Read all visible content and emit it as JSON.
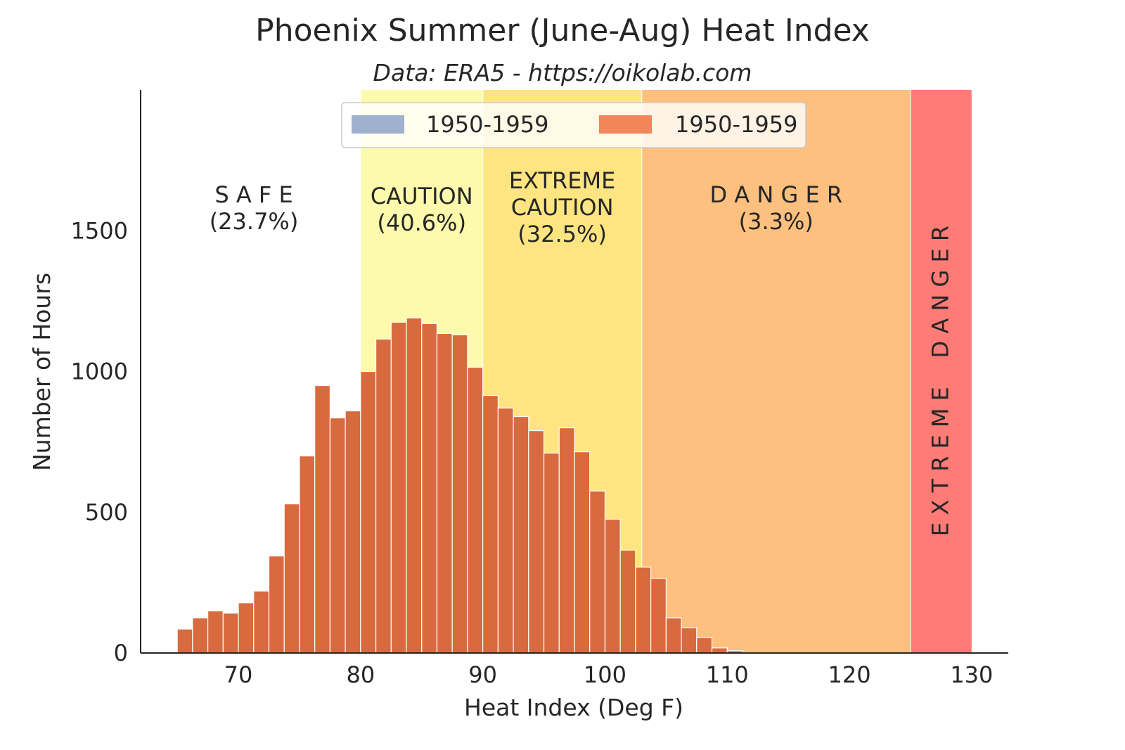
{
  "chart_data": {
    "type": "bar",
    "title": "Phoenix Summer (June-Aug) Heat Index",
    "subtitle": "Data: ERA5 - https://oikolab.com",
    "xlabel": "Heat Index (Deg F)",
    "ylabel": "Number of Hours",
    "xlim": [
      62,
      133
    ],
    "ylim": [
      0,
      2000
    ],
    "x_ticks": [
      70,
      80,
      90,
      100,
      110,
      120,
      130
    ],
    "y_ticks": [
      0,
      500,
      1000,
      1500
    ],
    "bin_width": 1.25,
    "grid": false,
    "legend_position": "top-center",
    "legend": [
      {
        "label": "1950-1959",
        "color": "#9fb1cf"
      },
      {
        "label": "1950-1959",
        "color": "#f4845a"
      }
    ],
    "zones": [
      {
        "name": "SAFE",
        "label_lines": [
          "S A F E",
          "(23.7%)"
        ],
        "from": 62,
        "to": 80,
        "color": "#ffffff"
      },
      {
        "name": "CAUTION",
        "label_lines": [
          "CAUTION",
          "(40.6%)"
        ],
        "from": 80,
        "to": 90,
        "color": "#fdfaae"
      },
      {
        "name": "EXTREME CAUTION",
        "label_lines": [
          "EXTREME",
          "CAUTION",
          "(32.5%)"
        ],
        "from": 90,
        "to": 103,
        "color": "#fee581"
      },
      {
        "name": "DANGER",
        "label_lines": [
          "D A N G E R",
          "(3.3%)"
        ],
        "from": 103,
        "to": 125,
        "color": "#fdc07e"
      },
      {
        "name": "EXTREME DANGER",
        "label_lines": [
          "E X T R E M E    D A N G E R"
        ],
        "from": 125,
        "to": 130,
        "color": "#ff7b76",
        "vertical": true
      }
    ],
    "series": [
      {
        "name": "1950-1959",
        "color": "#d86a3f",
        "x_start": [
          65.0,
          66.25,
          67.5,
          68.75,
          70.0,
          71.25,
          72.5,
          73.75,
          75.0,
          76.25,
          77.5,
          78.75,
          80.0,
          81.25,
          82.5,
          83.75,
          85.0,
          86.25,
          87.5,
          88.75,
          90.0,
          91.25,
          92.5,
          93.75,
          95.0,
          96.25,
          97.5,
          98.75,
          100.0,
          101.25,
          102.5,
          103.75,
          105.0,
          106.25,
          107.5,
          108.75,
          110.0
        ],
        "values": [
          85,
          125,
          150,
          142,
          178,
          220,
          345,
          530,
          700,
          950,
          835,
          860,
          1000,
          1115,
          1175,
          1190,
          1170,
          1135,
          1130,
          1015,
          915,
          870,
          840,
          790,
          710,
          800,
          715,
          575,
          475,
          365,
          305,
          265,
          125,
          90,
          55,
          18,
          8
        ]
      }
    ]
  }
}
